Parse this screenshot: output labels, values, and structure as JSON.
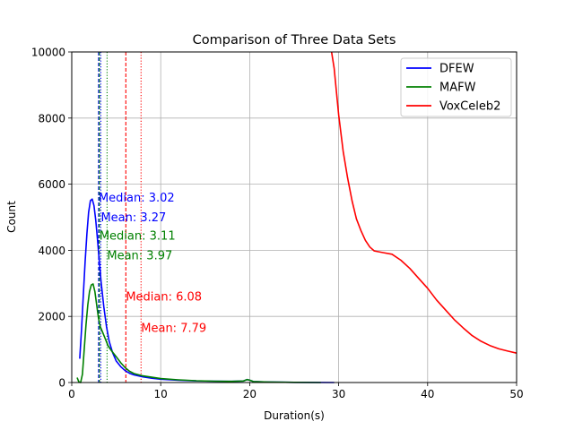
{
  "chart_data": {
    "type": "line",
    "title": "Comparison of Three Data Sets",
    "xlabel": "Duration(s)",
    "ylabel": "Count",
    "xlim": [
      0,
      50
    ],
    "ylim": [
      0,
      10000
    ],
    "xticks": [
      0,
      10,
      20,
      30,
      40,
      50
    ],
    "yticks": [
      0,
      2000,
      4000,
      6000,
      8000,
      10000
    ],
    "grid": true,
    "legend_position": "top-right",
    "series": [
      {
        "name": "DFEW",
        "color": "#0000ff",
        "points": [
          [
            0.9,
            720
          ],
          [
            1.1,
            1600
          ],
          [
            1.3,
            2650
          ],
          [
            1.5,
            3650
          ],
          [
            1.7,
            4500
          ],
          [
            1.9,
            5150
          ],
          [
            2.1,
            5500
          ],
          [
            2.3,
            5550
          ],
          [
            2.5,
            5350
          ],
          [
            2.7,
            4900
          ],
          [
            2.9,
            4300
          ],
          [
            3.1,
            3650
          ],
          [
            3.3,
            3050
          ],
          [
            3.6,
            2300
          ],
          [
            3.9,
            1700
          ],
          [
            4.2,
            1250
          ],
          [
            4.6,
            900
          ],
          [
            5.0,
            650
          ],
          [
            5.5,
            480
          ],
          [
            6.0,
            360
          ],
          [
            6.5,
            280
          ],
          [
            7.0,
            230
          ],
          [
            8.0,
            170
          ],
          [
            9.0,
            130
          ],
          [
            10.0,
            100
          ],
          [
            12.0,
            70
          ],
          [
            14.0,
            50
          ],
          [
            16.0,
            40
          ],
          [
            18.0,
            35
          ],
          [
            19.3,
            45
          ],
          [
            19.7,
            90
          ],
          [
            20.0,
            70
          ],
          [
            20.4,
            30
          ],
          [
            22.0,
            15
          ],
          [
            25.0,
            5
          ],
          [
            29.5,
            0
          ]
        ]
      },
      {
        "name": "MAFW",
        "color": "#008000",
        "points": [
          [
            0.6,
            150
          ],
          [
            0.8,
            20
          ],
          [
            1.0,
            0
          ],
          [
            1.2,
            250
          ],
          [
            1.4,
            1000
          ],
          [
            1.6,
            1750
          ],
          [
            1.8,
            2350
          ],
          [
            2.0,
            2750
          ],
          [
            2.2,
            2950
          ],
          [
            2.4,
            2980
          ],
          [
            2.6,
            2750
          ],
          [
            2.8,
            2350
          ],
          [
            3.0,
            1950
          ],
          [
            3.2,
            1700
          ],
          [
            3.5,
            1500
          ],
          [
            3.8,
            1300
          ],
          [
            4.1,
            1100
          ],
          [
            4.5,
            950
          ],
          [
            5.0,
            780
          ],
          [
            5.5,
            600
          ],
          [
            6.0,
            450
          ],
          [
            6.5,
            340
          ],
          [
            7.0,
            270
          ],
          [
            8.0,
            200
          ],
          [
            9.0,
            160
          ],
          [
            10.0,
            120
          ],
          [
            12.0,
            80
          ],
          [
            14.0,
            55
          ],
          [
            16.0,
            40
          ],
          [
            18.0,
            35
          ],
          [
            19.3,
            45
          ],
          [
            19.7,
            90
          ],
          [
            20.0,
            70
          ],
          [
            20.4,
            30
          ],
          [
            22.0,
            15
          ],
          [
            25.0,
            5
          ],
          [
            28.0,
            0
          ]
        ]
      },
      {
        "name": "VoxCeleb2",
        "color": "#ff0000",
        "points": [
          [
            29.2,
            10000
          ],
          [
            29.5,
            9500
          ],
          [
            30.0,
            8100
          ],
          [
            30.5,
            7000
          ],
          [
            31.0,
            6200
          ],
          [
            31.5,
            5500
          ],
          [
            32.0,
            4950
          ],
          [
            32.5,
            4600
          ],
          [
            33.0,
            4300
          ],
          [
            33.5,
            4100
          ],
          [
            34.0,
            3980
          ],
          [
            35.0,
            3930
          ],
          [
            36.0,
            3880
          ],
          [
            37.0,
            3700
          ],
          [
            38.0,
            3450
          ],
          [
            39.0,
            3150
          ],
          [
            40.0,
            2850
          ],
          [
            41.0,
            2500
          ],
          [
            42.0,
            2200
          ],
          [
            43.0,
            1900
          ],
          [
            44.0,
            1650
          ],
          [
            45.0,
            1420
          ],
          [
            46.0,
            1250
          ],
          [
            47.0,
            1120
          ],
          [
            48.0,
            1020
          ],
          [
            49.0,
            950
          ],
          [
            50.0,
            890
          ]
        ]
      }
    ],
    "vlines": [
      {
        "x": 3.02,
        "color": "#0000ff",
        "style": "dashed"
      },
      {
        "x": 3.27,
        "color": "#0000ff",
        "style": "dotted"
      },
      {
        "x": 3.11,
        "color": "#008000",
        "style": "dashed"
      },
      {
        "x": 3.97,
        "color": "#008000",
        "style": "dotted"
      },
      {
        "x": 6.08,
        "color": "#ff0000",
        "style": "dashed"
      },
      {
        "x": 7.79,
        "color": "#ff0000",
        "style": "dotted"
      }
    ],
    "annotations": [
      {
        "text": "Median: 3.02",
        "x": 3.02,
        "y": 5600,
        "color": "#0000ff"
      },
      {
        "text": "Mean: 3.27",
        "x": 3.27,
        "y": 5000,
        "color": "#0000ff"
      },
      {
        "text": "Median: 3.11",
        "x": 3.11,
        "y": 4450,
        "color": "#008000"
      },
      {
        "text": "Mean: 3.97",
        "x": 3.97,
        "y": 3850,
        "color": "#008000"
      },
      {
        "text": "Median: 6.08",
        "x": 6.08,
        "y": 2600,
        "color": "#ff0000"
      },
      {
        "text": "Mean: 7.79",
        "x": 7.79,
        "y": 1650,
        "color": "#ff0000"
      }
    ]
  }
}
